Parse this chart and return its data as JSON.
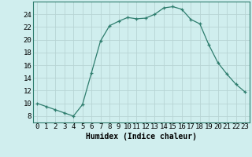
{
  "x": [
    0,
    1,
    2,
    3,
    4,
    5,
    6,
    7,
    8,
    9,
    10,
    11,
    12,
    13,
    14,
    15,
    16,
    17,
    18,
    19,
    20,
    21,
    22,
    23
  ],
  "y": [
    10,
    9.5,
    9,
    8.5,
    8,
    9.8,
    14.8,
    19.8,
    22.2,
    22.9,
    23.5,
    23.3,
    23.4,
    24.0,
    25.0,
    25.2,
    24.8,
    23.2,
    22.5,
    19.2,
    16.4,
    14.6,
    13.0,
    11.8
  ],
  "line_color": "#2e7d6e",
  "marker": "+",
  "marker_size": 3,
  "bg_color": "#d0eeee",
  "grid_color": "#b8d4d4",
  "xlabel": "Humidex (Indice chaleur)",
  "xlim": [
    -0.5,
    23.5
  ],
  "ylim": [
    7,
    26
  ],
  "yticks": [
    8,
    10,
    12,
    14,
    16,
    18,
    20,
    22,
    24
  ],
  "xticks": [
    0,
    1,
    2,
    3,
    4,
    5,
    6,
    7,
    8,
    9,
    10,
    11,
    12,
    13,
    14,
    15,
    16,
    17,
    18,
    19,
    20,
    21,
    22,
    23
  ],
  "xlabel_fontsize": 7,
  "tick_fontsize": 6.5
}
